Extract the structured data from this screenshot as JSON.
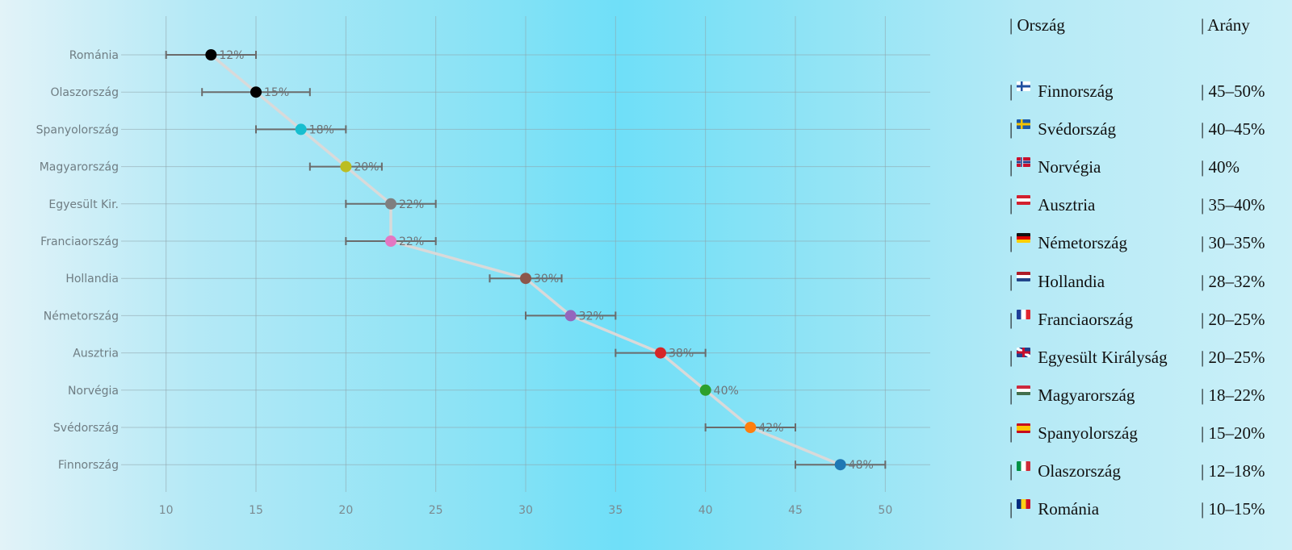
{
  "chart_data": {
    "type": "scatter",
    "subtype": "dot-plot-with-error-bars",
    "xlim": [
      7.5,
      52.5
    ],
    "xticks": [
      10,
      15,
      20,
      25,
      30,
      35,
      40,
      45,
      50
    ],
    "grid": true,
    "connecting_line": true,
    "points": [
      {
        "category": "Románia",
        "value": 12.5,
        "low": 10,
        "high": 15,
        "label": "12%",
        "color": "#000000"
      },
      {
        "category": "Olaszország",
        "value": 15,
        "low": 12,
        "high": 18,
        "label": "15%",
        "color": "#000000"
      },
      {
        "category": "Spanyolország",
        "value": 17.5,
        "low": 15,
        "high": 20,
        "label": "18%",
        "color": "#17becf"
      },
      {
        "category": "Magyarország",
        "value": 20,
        "low": 18,
        "high": 22,
        "label": "20%",
        "color": "#bcbd22"
      },
      {
        "category": "Egyesült Kir.",
        "value": 22.5,
        "low": 20,
        "high": 25,
        "label": "22%",
        "color": "#7f7f7f"
      },
      {
        "category": "Franciaország",
        "value": 22.5,
        "low": 20,
        "high": 25,
        "label": "22%",
        "color": "#e377c2"
      },
      {
        "category": "Hollandia",
        "value": 30,
        "low": 28,
        "high": 32,
        "label": "30%",
        "color": "#8c564b"
      },
      {
        "category": "Németország",
        "value": 32.5,
        "low": 30,
        "high": 35,
        "label": "32%",
        "color": "#9467bd"
      },
      {
        "category": "Ausztria",
        "value": 37.5,
        "low": 35,
        "high": 40,
        "label": "38%",
        "color": "#d62728"
      },
      {
        "category": "Norvégia",
        "value": 40,
        "low": 40,
        "high": 40,
        "label": "40%",
        "color": "#2ca02c"
      },
      {
        "category": "Svédország",
        "value": 42.5,
        "low": 40,
        "high": 45,
        "label": "42%",
        "color": "#ff7f0e"
      },
      {
        "category": "Finnország",
        "value": 47.5,
        "low": 45,
        "high": 50,
        "label": "48%",
        "color": "#1f77b4"
      }
    ]
  },
  "table": {
    "header": {
      "country": "| Ország",
      "ratio": "| Arány"
    },
    "rows": [
      {
        "prefix": "|",
        "country": "Finnország",
        "ratio": "| 45–50%",
        "flag": "finland-flag-icon"
      },
      {
        "prefix": "|",
        "country": "Svédország",
        "ratio": "| 40–45%",
        "flag": "sweden-flag-icon"
      },
      {
        "prefix": "|",
        "country": "Norvégia",
        "ratio": "| 40%",
        "flag": "norway-flag-icon"
      },
      {
        "prefix": "|",
        "country": "Ausztria",
        "ratio": "| 35–40%",
        "flag": "austria-flag-icon"
      },
      {
        "prefix": "|",
        "country": "Németország",
        "ratio": "| 30–35%",
        "flag": "germany-flag-icon"
      },
      {
        "prefix": "|",
        "country": "Hollandia",
        "ratio": "| 28–32%",
        "flag": "netherlands-flag-icon"
      },
      {
        "prefix": "|",
        "country": "Franciaország",
        "ratio": "| 20–25%",
        "flag": "france-flag-icon"
      },
      {
        "prefix": "|",
        "country": "Egyesült Királyság",
        "ratio": "| 20–25%",
        "flag": "uk-flag-icon"
      },
      {
        "prefix": "|",
        "country": "Magyarország",
        "ratio": "| 18–22%",
        "flag": "hungary-flag-icon"
      },
      {
        "prefix": "|",
        "country": "Spanyolország",
        "ratio": "| 15–20%",
        "flag": "spain-flag-icon"
      },
      {
        "prefix": "|",
        "country": "Olaszország",
        "ratio": "| 12–18%",
        "flag": "italy-flag-icon"
      },
      {
        "prefix": "|",
        "country": "Románia",
        "ratio": "| 10–15%",
        "flag": "romania-flag-icon"
      }
    ]
  },
  "colors": {
    "line": "#d9d9d9",
    "errorbar": "#6b6b6b",
    "grid": "#8ea2a8"
  }
}
